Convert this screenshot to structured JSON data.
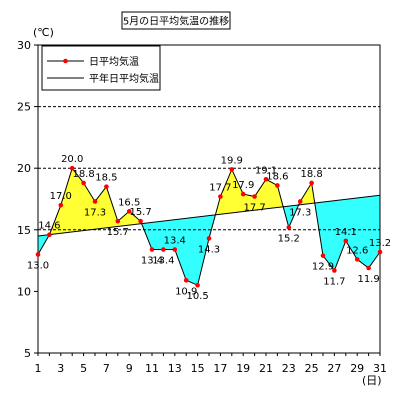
{
  "chart_data": {
    "type": "line",
    "title": "5月の日平均気温の推移",
    "ylabel": "(℃)",
    "xlabel": "(日)",
    "ylim": [
      5,
      30
    ],
    "yticks": [
      5,
      10,
      15,
      20,
      25,
      30
    ],
    "xlim": [
      1,
      31
    ],
    "xticks": [
      1,
      3,
      5,
      7,
      9,
      11,
      13,
      15,
      17,
      19,
      21,
      23,
      25,
      27,
      29,
      31
    ],
    "grid": "dashed horizontal at 15, 20, 25",
    "legend_position": "top-left",
    "colors": {
      "daily_line": "#000000",
      "daily_marker": "#ff0000",
      "normal_line": "#000000",
      "above_fill": "#ffff33",
      "below_fill": "#33ffff"
    },
    "series": [
      {
        "name": "日平均気温",
        "x": [
          1,
          2,
          3,
          4,
          5,
          6,
          7,
          8,
          9,
          10,
          11,
          12,
          13,
          14,
          15,
          16,
          17,
          18,
          19,
          20,
          21,
          22,
          23,
          24,
          25,
          26,
          27,
          28,
          29,
          30,
          31
        ],
        "values": [
          13.0,
          14.6,
          17.0,
          20.0,
          18.8,
          17.3,
          18.5,
          15.7,
          16.5,
          15.7,
          13.4,
          13.4,
          13.4,
          10.9,
          10.5,
          14.3,
          17.7,
          19.9,
          17.9,
          17.7,
          19.1,
          18.6,
          15.2,
          17.3,
          18.8,
          12.9,
          11.7,
          14.1,
          12.6,
          11.9,
          13.2
        ]
      },
      {
        "name": "平年日平均気温",
        "x": [
          1,
          31
        ],
        "values": [
          14.5,
          17.8
        ]
      }
    ],
    "data_labels": [
      {
        "day": 1,
        "text": "13.0",
        "pos": "below"
      },
      {
        "day": 2,
        "text": "14.6",
        "pos": "above"
      },
      {
        "day": 3,
        "text": "17.0",
        "pos": "above"
      },
      {
        "day": 4,
        "text": "20.0",
        "pos": "above"
      },
      {
        "day": 5,
        "text": "18.8",
        "pos": "above"
      },
      {
        "day": 6,
        "text": "17.3",
        "pos": "below"
      },
      {
        "day": 7,
        "text": "18.5",
        "pos": "above"
      },
      {
        "day": 8,
        "text": "15.7",
        "pos": "below"
      },
      {
        "day": 9,
        "text": "16.5",
        "pos": "above"
      },
      {
        "day": 10,
        "text": "15.7",
        "pos": "above"
      },
      {
        "day": 11,
        "text": "13.4",
        "pos": "below"
      },
      {
        "day": 12,
        "text": "13.4",
        "pos": "below"
      },
      {
        "day": 13,
        "text": "13.4",
        "pos": "above"
      },
      {
        "day": 14,
        "text": "10.9",
        "pos": "below"
      },
      {
        "day": 15,
        "text": "10.5",
        "pos": "below"
      },
      {
        "day": 16,
        "text": "14.3",
        "pos": "below"
      },
      {
        "day": 17,
        "text": "17.7",
        "pos": "above"
      },
      {
        "day": 18,
        "text": "19.9",
        "pos": "above"
      },
      {
        "day": 19,
        "text": "17.9",
        "pos": "above"
      },
      {
        "day": 20,
        "text": "17.7",
        "pos": "below"
      },
      {
        "day": 21,
        "text": "19.1",
        "pos": "above"
      },
      {
        "day": 22,
        "text": "18.6",
        "pos": "above"
      },
      {
        "day": 23,
        "text": "15.2",
        "pos": "below"
      },
      {
        "day": 24,
        "text": "17.3",
        "pos": "below"
      },
      {
        "day": 25,
        "text": "18.8",
        "pos": "above"
      },
      {
        "day": 26,
        "text": "12.9",
        "pos": "below"
      },
      {
        "day": 27,
        "text": "11.7",
        "pos": "below"
      },
      {
        "day": 28,
        "text": "14.1",
        "pos": "above"
      },
      {
        "day": 29,
        "text": "12.6",
        "pos": "above"
      },
      {
        "day": 30,
        "text": "11.9",
        "pos": "below"
      },
      {
        "day": 31,
        "text": "13.2",
        "pos": "above"
      }
    ]
  }
}
